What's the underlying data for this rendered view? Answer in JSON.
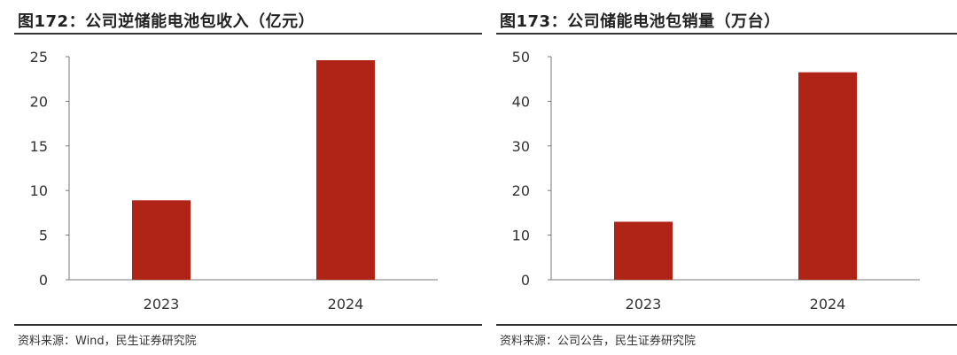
{
  "colors": {
    "bar": "#b02418",
    "rule": "#333333",
    "axis": "#777777"
  },
  "panels": {
    "left": {
      "title": "图172：公司逆储能电池包收入（亿元）",
      "source": "资料来源：Wind，民生证券研究院"
    },
    "right": {
      "title": "图173：公司储能电池包销量（万台）",
      "source": "资料来源：公司公告，民生证券研究院"
    }
  },
  "chart_data": [
    {
      "type": "bar",
      "title": "图172：公司逆储能电池包收入（亿元）",
      "categories": [
        "2023",
        "2024"
      ],
      "values": [
        8.9,
        24.6
      ],
      "ylim": [
        0,
        25
      ],
      "yticks": [
        0,
        5,
        10,
        15,
        20,
        25
      ],
      "grid": false,
      "legend": "none"
    },
    {
      "type": "bar",
      "title": "图173：公司储能电池包销量（万台）",
      "categories": [
        "2023",
        "2024"
      ],
      "values": [
        13,
        46.5
      ],
      "ylim": [
        0,
        50
      ],
      "yticks": [
        0,
        10,
        20,
        30,
        40,
        50
      ],
      "grid": false,
      "legend": "none"
    }
  ]
}
